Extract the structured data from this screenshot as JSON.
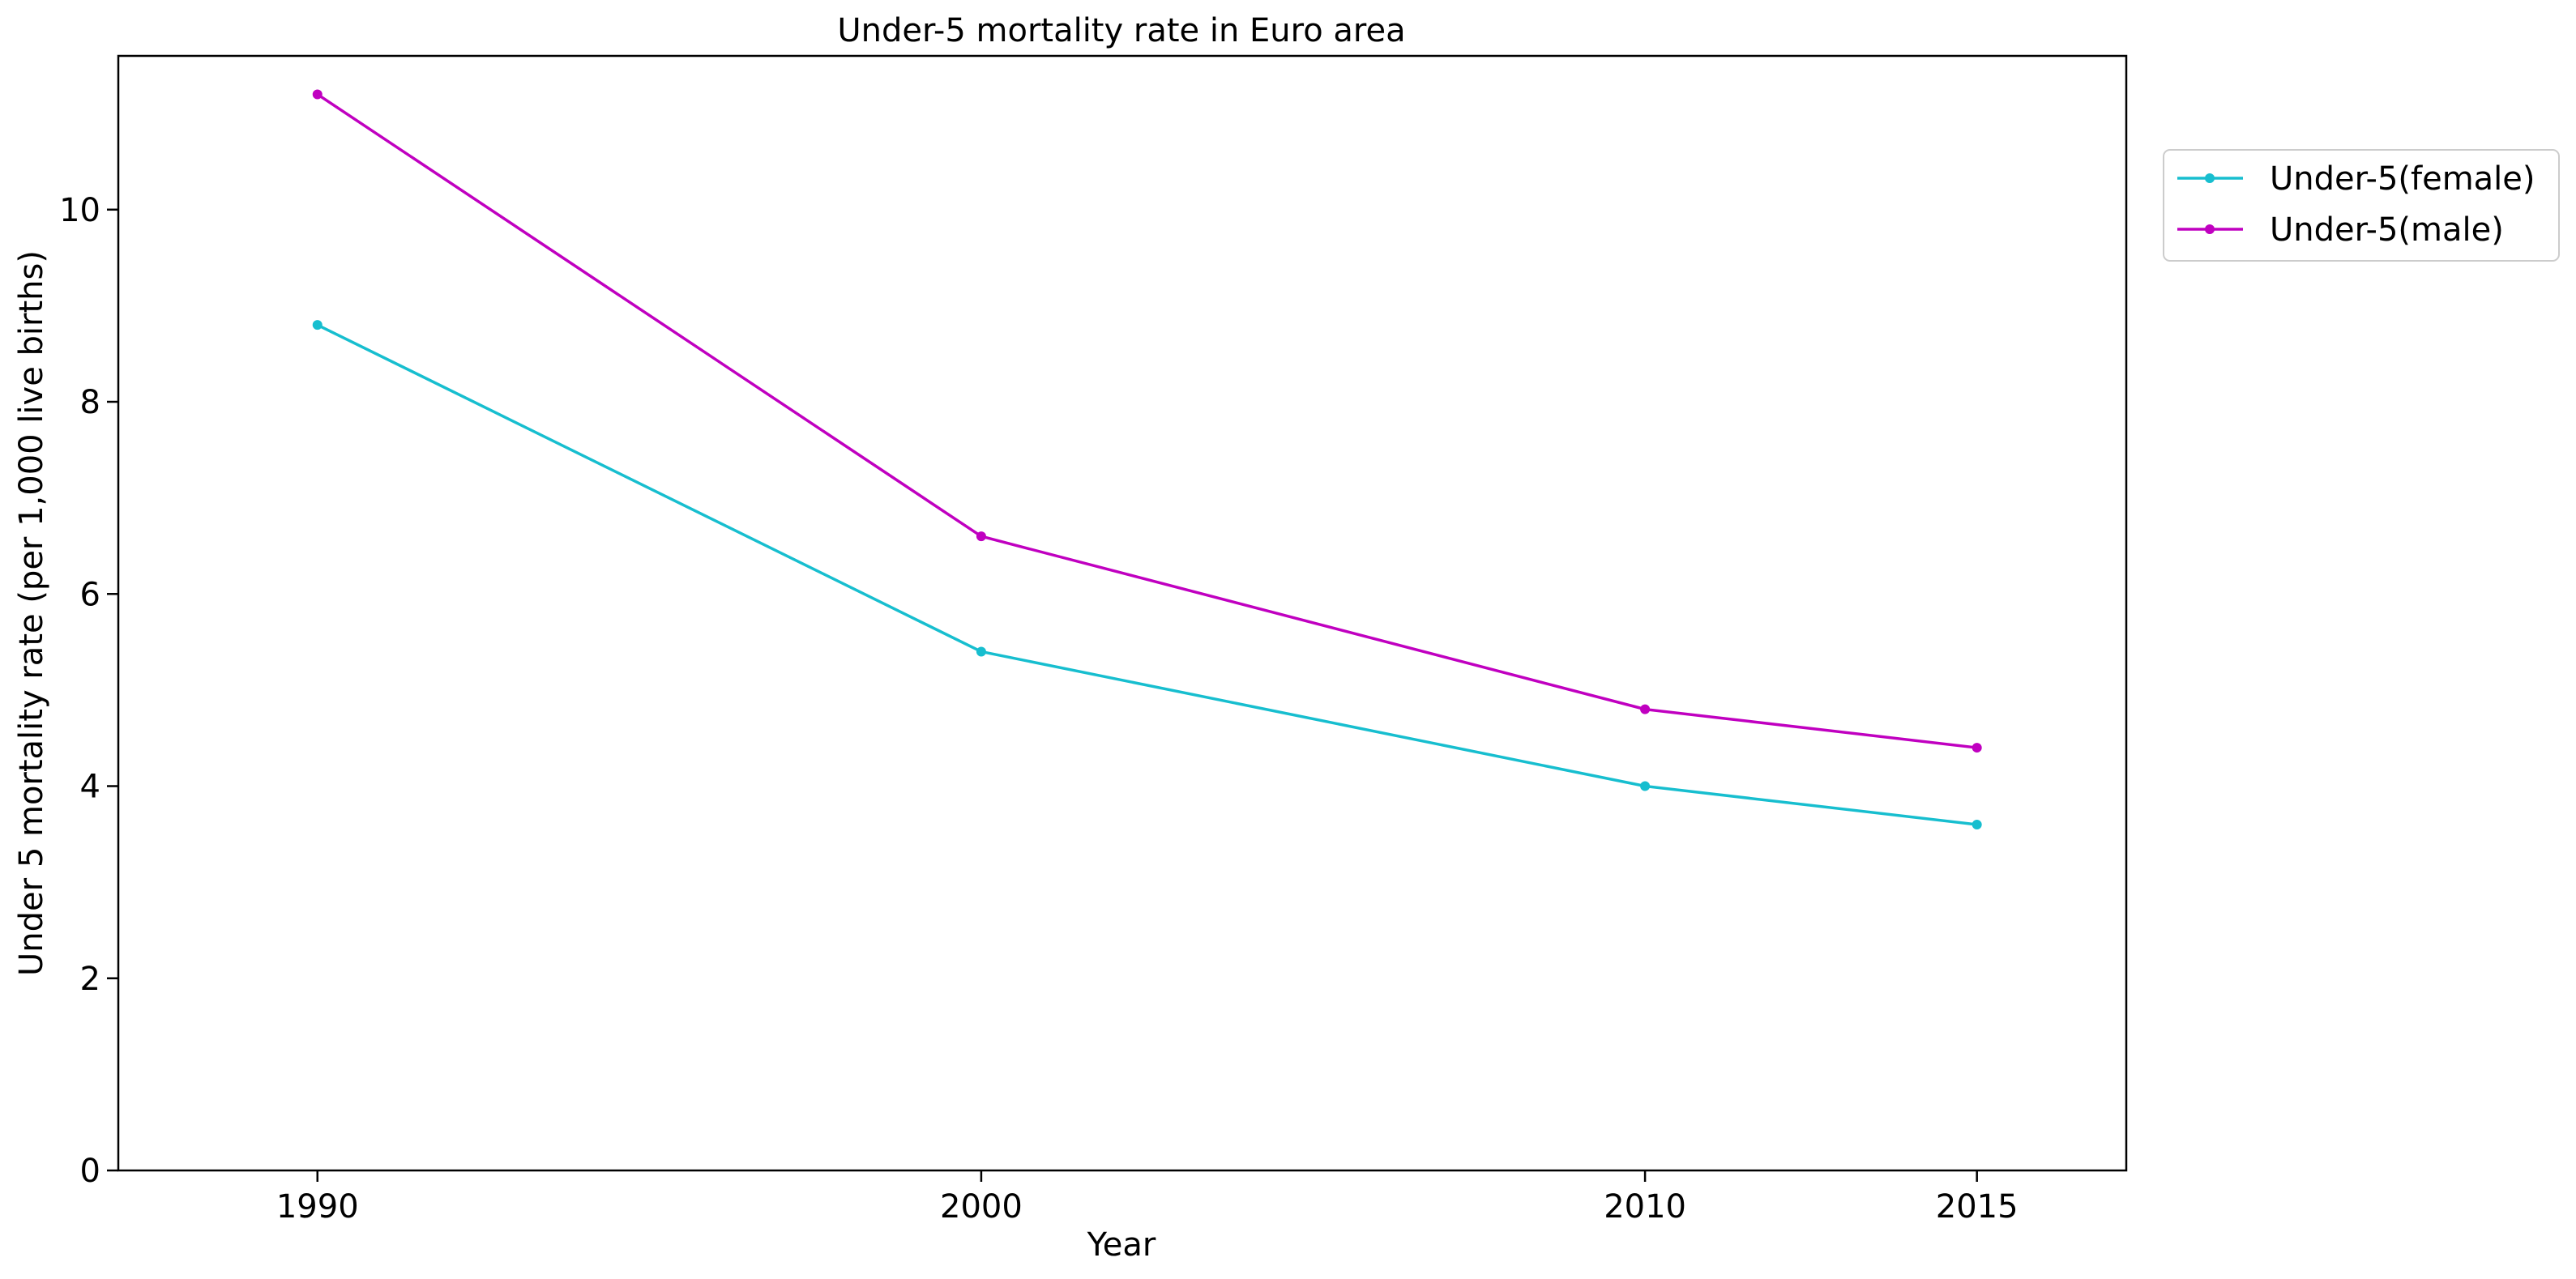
{
  "chart_data": {
    "type": "line",
    "title": "Under-5 mortality rate in Euro area",
    "xlabel": "Year",
    "ylabel": "Under 5 mortality rate (per 1,000 live births)",
    "categories": [
      "1990",
      "2000",
      "2010",
      "2015"
    ],
    "y_ticks": [
      "0",
      "2",
      "4",
      "6",
      "8",
      "10"
    ],
    "ylim": [
      0,
      11.6
    ],
    "grid": false,
    "legend_position": "outside-top-right",
    "series": [
      {
        "name": "Under-5(female)",
        "color": "#17becf",
        "values": [
          8.8,
          5.4,
          4.0,
          3.6
        ]
      },
      {
        "name": "Under-5(male)",
        "color": "#c000c0",
        "values": [
          11.2,
          6.6,
          4.8,
          4.4
        ]
      }
    ]
  }
}
